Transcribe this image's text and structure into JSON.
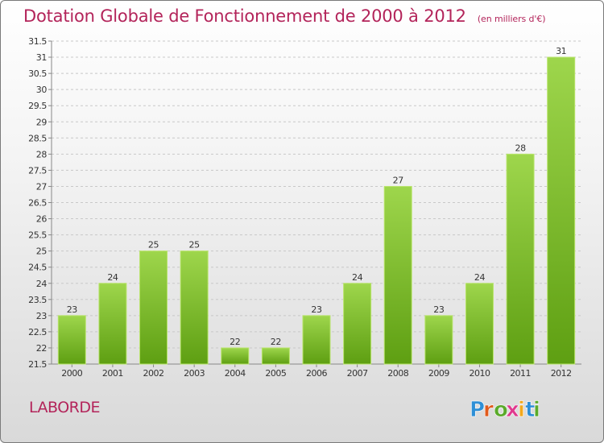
{
  "title": "Dotation Globale de Fonctionnement de 2000 à 2012",
  "subtitle": "(en milliers d'€)",
  "commune": "LABORDE",
  "logo": {
    "text": "Proxiti",
    "colors": [
      "#2e8fd6",
      "#e05a1c",
      "#5aaa2a",
      "#e03a8e",
      "#f2a81d",
      "#2e8fd6",
      "#5aaa2a"
    ]
  },
  "colors": {
    "title": "#b3245a",
    "bar_top": "#9ed64c",
    "bar_bottom": "#5e9f12",
    "bar_edge": "#b8e46a",
    "grid": "#c8c8c8",
    "axis": "#888888",
    "text": "#333333"
  },
  "chart_data": {
    "type": "bar",
    "title": "Dotation Globale de Fonctionnement de 2000 à 2012",
    "subtitle": "(en milliers d'€)",
    "xlabel": "",
    "ylabel": "",
    "categories": [
      "2000",
      "2001",
      "2002",
      "2003",
      "2004",
      "2005",
      "2006",
      "2007",
      "2008",
      "2009",
      "2010",
      "2011",
      "2012"
    ],
    "values": [
      23,
      24,
      25,
      25,
      22,
      22,
      23,
      24,
      27,
      23,
      24,
      28,
      31
    ],
    "data_labels": [
      "23",
      "24",
      "25",
      "25",
      "22",
      "22",
      "23",
      "24",
      "27",
      "23",
      "24",
      "28",
      "31"
    ],
    "ylim": [
      21.5,
      31.5
    ],
    "ytick_step": 0.5,
    "yticks": [
      "21.5",
      "22",
      "22.5",
      "23",
      "23.5",
      "24",
      "24.5",
      "25",
      "25.5",
      "26",
      "26.5",
      "27",
      "27.5",
      "28",
      "28.5",
      "29",
      "29.5",
      "30",
      "30.5",
      "31",
      "31.5"
    ],
    "grid": "horizontal-dashed",
    "legend": "none"
  }
}
